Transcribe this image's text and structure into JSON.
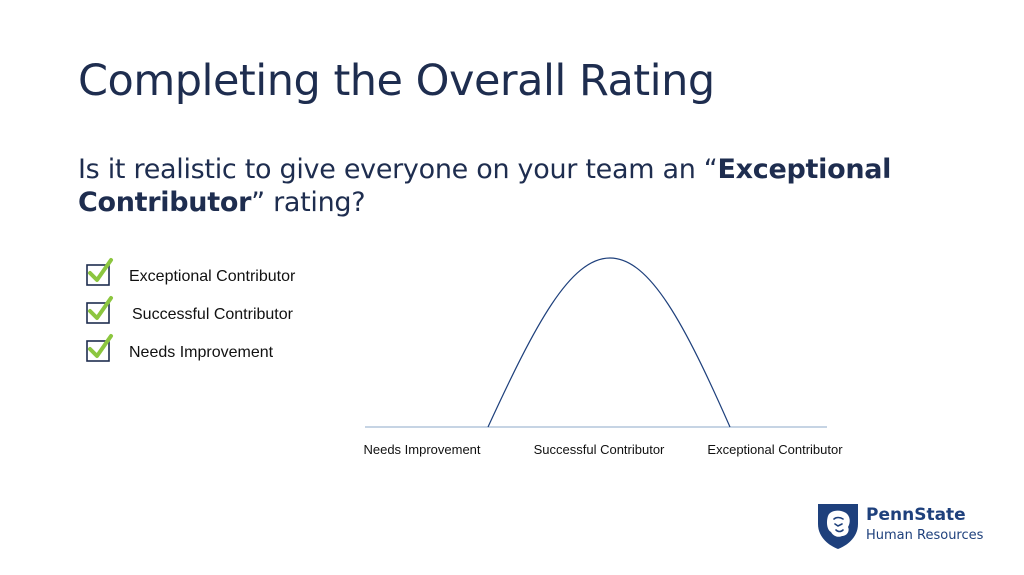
{
  "slide": {
    "title": "Completing the Overall Rating",
    "question": {
      "prefix": "Is it realistic to give everyone on your team an “",
      "bold": "Exceptional Contributor",
      "suffix": "” rating?"
    }
  },
  "checklist": {
    "items": [
      {
        "label": "Exceptional Contributor",
        "checked": true
      },
      {
        "label": "Successful Contributor",
        "checked": true
      },
      {
        "label": "Needs Improvement",
        "checked": true
      }
    ],
    "check_color": "#8cc63f",
    "box_color": "#1e2d4f"
  },
  "chart_data": {
    "type": "line",
    "title": "",
    "xlabel": "",
    "ylabel": "",
    "categories": [
      "Needs Improvement",
      "Successful Contributor",
      "Exceptional Contributor"
    ],
    "shape": "bell-curve",
    "line_color": "#1e407c"
  },
  "logo": {
    "name": "PennState",
    "subtitle": "Human Resources",
    "color": "#1e407c"
  }
}
